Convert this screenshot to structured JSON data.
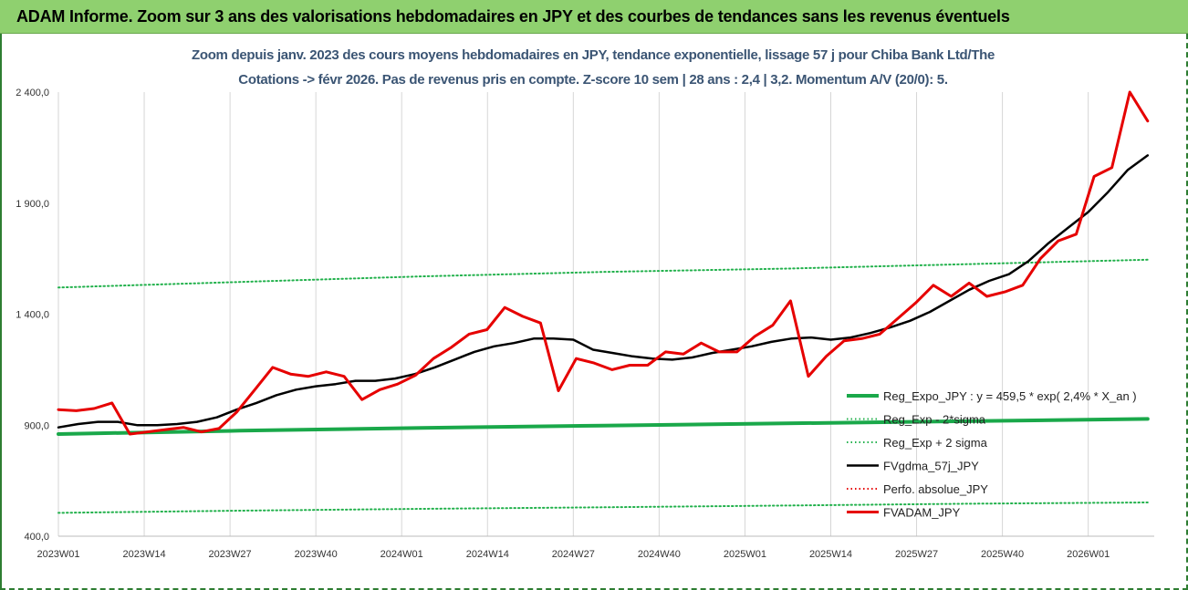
{
  "header": {
    "title": "ADAM Informe. Zoom sur 3 ans des valorisations hebdomadaires en JPY et des courbes de tendances sans les revenus éventuels"
  },
  "colors": {
    "header_bg": "#8fd06f",
    "reg_expo": "#1aa84a",
    "reg_sigma": "#22b14c",
    "fvgdma": "#000000",
    "perfo": "#e60000",
    "fvadam": "#e60000"
  },
  "chart_data": {
    "type": "line",
    "title": "Zoom depuis janv. 2023 des cours moyens hebdomadaires en JPY, tendance exponentielle, lissage 57 j pour Chiba Bank Ltd/The",
    "subtitle": "Cotations -> févr 2026.  Pas de revenus pris en compte. Z-score 10 sem | 28 ans : 2,4 | 3,2. Momentum A/V (20/0): 5.",
    "ylim": [
      400,
      2400
    ],
    "y_ticks": [
      "2 400,0",
      "1 900,0",
      "1 400,0",
      "900,0",
      "400,0"
    ],
    "y_tick_values": [
      2400,
      1900,
      1400,
      900,
      400
    ],
    "x_ticks": [
      "2023W01",
      "2023W14",
      "2023W27",
      "2023W40",
      "2024W01",
      "2024W14",
      "2024W27",
      "2024W40",
      "2025W01",
      "2025W14",
      "2025W27",
      "2025W40",
      "2026W01"
    ],
    "x_tick_index": [
      0,
      13,
      26,
      39,
      52,
      65,
      78,
      91,
      104,
      117,
      130,
      143,
      156
    ],
    "grid": "vertical",
    "legend_position": "bottom-right",
    "series": [
      {
        "name": "Reg_Expo_JPY : y = 459,5 * exp( 2,4% *  X_an )",
        "style": "thick",
        "values": [
          860,
          875,
          888,
          898,
          908,
          918,
          928
        ]
      },
      {
        "name": "Reg_Exp - 2*sigma",
        "style": "dotted",
        "values": [
          505,
          515,
          523,
          530,
          538,
          546,
          552
        ]
      },
      {
        "name": "Reg_Exp + 2 sigma",
        "style": "dotted",
        "values": [
          1520,
          1545,
          1570,
          1590,
          1605,
          1625,
          1645
        ]
      },
      {
        "name": "FVgdma_57j_JPY",
        "style": "solid",
        "values": [
          890,
          905,
          915,
          915,
          900,
          900,
          905,
          915,
          935,
          970,
          1000,
          1035,
          1060,
          1075,
          1085,
          1100,
          1100,
          1110,
          1130,
          1160,
          1195,
          1230,
          1255,
          1270,
          1290,
          1290,
          1285,
          1240,
          1225,
          1210,
          1200,
          1195,
          1205,
          1225,
          1240,
          1255,
          1275,
          1290,
          1295,
          1285,
          1295,
          1315,
          1340,
          1370,
          1410,
          1460,
          1510,
          1550,
          1580,
          1640,
          1720,
          1790,
          1860,
          1950,
          2050,
          2115
        ]
      },
      {
        "name": "Perfo. absolue_JPY",
        "style": "dotted",
        "values": []
      },
      {
        "name": "FVADAM_JPY",
        "style": "solid",
        "values": [
          970,
          965,
          975,
          1000,
          860,
          870,
          880,
          890,
          870,
          885,
          960,
          1060,
          1160,
          1130,
          1120,
          1140,
          1120,
          1015,
          1060,
          1085,
          1125,
          1200,
          1250,
          1310,
          1330,
          1430,
          1390,
          1360,
          1055,
          1200,
          1180,
          1150,
          1170,
          1170,
          1230,
          1220,
          1270,
          1230,
          1230,
          1300,
          1350,
          1460,
          1120,
          1210,
          1280,
          1290,
          1310,
          1380,
          1450,
          1530,
          1480,
          1540,
          1480,
          1500,
          1530,
          1650,
          1730,
          1760,
          2020,
          2060,
          2400,
          2270
        ]
      }
    ]
  }
}
